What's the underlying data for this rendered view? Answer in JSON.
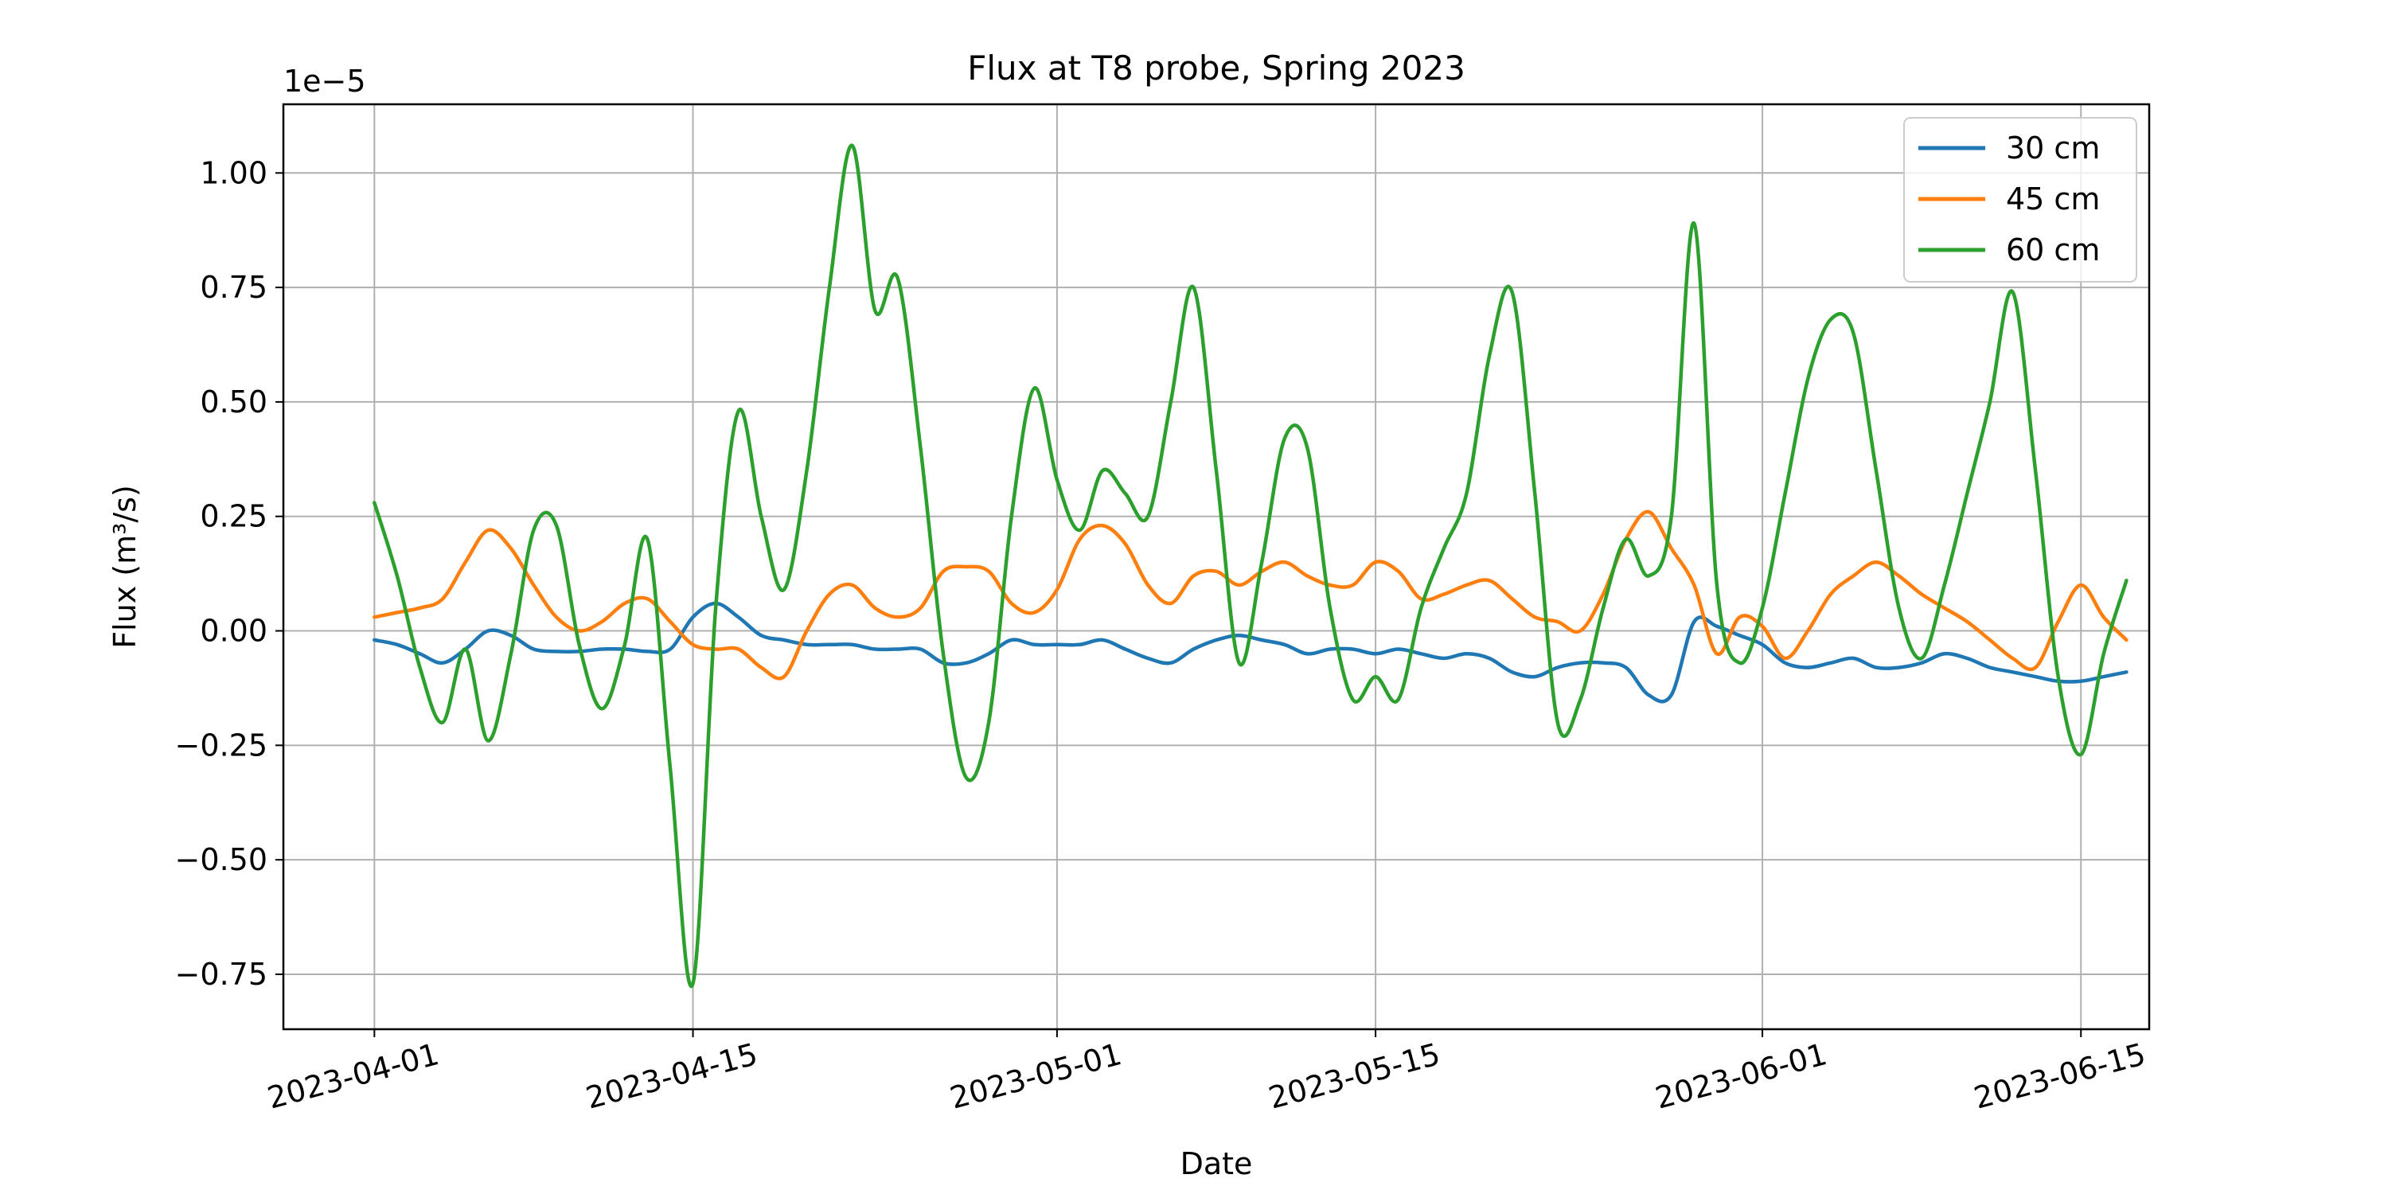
{
  "chart_data": {
    "type": "line",
    "title": "Flux at T8 probe, Spring 2023",
    "xlabel": "Date",
    "ylabel": "Flux (m³/s)",
    "y_scale_label": "1e−5",
    "y_multiplier": 1e-05,
    "grid": true,
    "legend_position": "top-right",
    "xlim": [
      "2023-03-28",
      "2023-06-18"
    ],
    "ylim": [
      -0.87,
      1.15
    ],
    "x_ticks": [
      {
        "date": "2023-04-01",
        "label": "2023-04-01"
      },
      {
        "date": "2023-04-15",
        "label": "2023-04-15"
      },
      {
        "date": "2023-05-01",
        "label": "2023-05-01"
      },
      {
        "date": "2023-05-15",
        "label": "2023-05-15"
      },
      {
        "date": "2023-06-01",
        "label": "2023-06-01"
      },
      {
        "date": "2023-06-15",
        "label": "2023-06-15"
      }
    ],
    "y_ticks": [
      {
        "value": 1.0,
        "label": "1.00"
      },
      {
        "value": 0.75,
        "label": "0.75"
      },
      {
        "value": 0.5,
        "label": "0.50"
      },
      {
        "value": 0.25,
        "label": "0.25"
      },
      {
        "value": 0.0,
        "label": "0.00"
      },
      {
        "value": -0.25,
        "label": "−0.25"
      },
      {
        "value": -0.5,
        "label": "−0.50"
      },
      {
        "value": -0.75,
        "label": "−0.75"
      }
    ],
    "series": [
      {
        "name": "30 cm",
        "color": "#1f77b4",
        "points": [
          [
            "2023-04-01",
            -0.02
          ],
          [
            "2023-04-02",
            -0.03
          ],
          [
            "2023-04-03",
            -0.05
          ],
          [
            "2023-04-04",
            -0.07
          ],
          [
            "2023-04-05",
            -0.04
          ],
          [
            "2023-04-06",
            0.0
          ],
          [
            "2023-04-07",
            -0.01
          ],
          [
            "2023-04-08",
            -0.04
          ],
          [
            "2023-04-09",
            -0.045
          ],
          [
            "2023-04-10",
            -0.045
          ],
          [
            "2023-04-11",
            -0.04
          ],
          [
            "2023-04-12",
            -0.04
          ],
          [
            "2023-04-13",
            -0.045
          ],
          [
            "2023-04-14",
            -0.04
          ],
          [
            "2023-04-15",
            0.03
          ],
          [
            "2023-04-16",
            0.06
          ],
          [
            "2023-04-17",
            0.03
          ],
          [
            "2023-04-18",
            -0.01
          ],
          [
            "2023-04-19",
            -0.02
          ],
          [
            "2023-04-20",
            -0.03
          ],
          [
            "2023-04-21",
            -0.03
          ],
          [
            "2023-04-22",
            -0.03
          ],
          [
            "2023-04-23",
            -0.04
          ],
          [
            "2023-04-24",
            -0.04
          ],
          [
            "2023-04-25",
            -0.04
          ],
          [
            "2023-04-26",
            -0.07
          ],
          [
            "2023-04-27",
            -0.07
          ],
          [
            "2023-04-28",
            -0.05
          ],
          [
            "2023-04-29",
            -0.02
          ],
          [
            "2023-04-30",
            -0.03
          ],
          [
            "2023-05-01",
            -0.03
          ],
          [
            "2023-05-02",
            -0.03
          ],
          [
            "2023-05-03",
            -0.02
          ],
          [
            "2023-05-04",
            -0.04
          ],
          [
            "2023-05-05",
            -0.06
          ],
          [
            "2023-05-06",
            -0.07
          ],
          [
            "2023-05-07",
            -0.04
          ],
          [
            "2023-05-08",
            -0.02
          ],
          [
            "2023-05-09",
            -0.01
          ],
          [
            "2023-05-10",
            -0.02
          ],
          [
            "2023-05-11",
            -0.03
          ],
          [
            "2023-05-12",
            -0.05
          ],
          [
            "2023-05-13",
            -0.04
          ],
          [
            "2023-05-14",
            -0.04
          ],
          [
            "2023-05-15",
            -0.05
          ],
          [
            "2023-05-16",
            -0.04
          ],
          [
            "2023-05-17",
            -0.05
          ],
          [
            "2023-05-18",
            -0.06
          ],
          [
            "2023-05-19",
            -0.05
          ],
          [
            "2023-05-20",
            -0.06
          ],
          [
            "2023-05-21",
            -0.09
          ],
          [
            "2023-05-22",
            -0.1
          ],
          [
            "2023-05-23",
            -0.08
          ],
          [
            "2023-05-24",
            -0.07
          ],
          [
            "2023-05-25",
            -0.07
          ],
          [
            "2023-05-26",
            -0.08
          ],
          [
            "2023-05-27",
            -0.14
          ],
          [
            "2023-05-28",
            -0.14
          ],
          [
            "2023-05-29",
            0.02
          ],
          [
            "2023-05-30",
            0.01
          ],
          [
            "2023-05-31",
            -0.01
          ],
          [
            "2023-06-01",
            -0.03
          ],
          [
            "2023-06-02",
            -0.07
          ],
          [
            "2023-06-03",
            -0.08
          ],
          [
            "2023-06-04",
            -0.07
          ],
          [
            "2023-06-05",
            -0.06
          ],
          [
            "2023-06-06",
            -0.08
          ],
          [
            "2023-06-07",
            -0.08
          ],
          [
            "2023-06-08",
            -0.07
          ],
          [
            "2023-06-09",
            -0.05
          ],
          [
            "2023-06-10",
            -0.06
          ],
          [
            "2023-06-11",
            -0.08
          ],
          [
            "2023-06-12",
            -0.09
          ],
          [
            "2023-06-13",
            -0.1
          ],
          [
            "2023-06-14",
            -0.11
          ],
          [
            "2023-06-15",
            -0.11
          ],
          [
            "2023-06-16",
            -0.1
          ],
          [
            "2023-06-17",
            -0.09
          ]
        ]
      },
      {
        "name": "45 cm",
        "color": "#ff7f0e",
        "points": [
          [
            "2023-04-01",
            0.03
          ],
          [
            "2023-04-02",
            0.04
          ],
          [
            "2023-04-03",
            0.05
          ],
          [
            "2023-04-04",
            0.07
          ],
          [
            "2023-04-05",
            0.15
          ],
          [
            "2023-04-06",
            0.22
          ],
          [
            "2023-04-07",
            0.18
          ],
          [
            "2023-04-08",
            0.1
          ],
          [
            "2023-04-09",
            0.03
          ],
          [
            "2023-04-10",
            0.0
          ],
          [
            "2023-04-11",
            0.02
          ],
          [
            "2023-04-12",
            0.06
          ],
          [
            "2023-04-13",
            0.07
          ],
          [
            "2023-04-14",
            0.02
          ],
          [
            "2023-04-15",
            -0.03
          ],
          [
            "2023-04-16",
            -0.04
          ],
          [
            "2023-04-17",
            -0.04
          ],
          [
            "2023-04-18",
            -0.08
          ],
          [
            "2023-04-19",
            -0.1
          ],
          [
            "2023-04-20",
            0.0
          ],
          [
            "2023-04-21",
            0.08
          ],
          [
            "2023-04-22",
            0.1
          ],
          [
            "2023-04-23",
            0.05
          ],
          [
            "2023-04-24",
            0.03
          ],
          [
            "2023-04-25",
            0.05
          ],
          [
            "2023-04-26",
            0.13
          ],
          [
            "2023-04-27",
            0.14
          ],
          [
            "2023-04-28",
            0.13
          ],
          [
            "2023-04-29",
            0.06
          ],
          [
            "2023-04-30",
            0.04
          ],
          [
            "2023-05-01",
            0.09
          ],
          [
            "2023-05-02",
            0.2
          ],
          [
            "2023-05-03",
            0.23
          ],
          [
            "2023-05-04",
            0.19
          ],
          [
            "2023-05-05",
            0.1
          ],
          [
            "2023-05-06",
            0.06
          ],
          [
            "2023-05-07",
            0.12
          ],
          [
            "2023-05-08",
            0.13
          ],
          [
            "2023-05-09",
            0.1
          ],
          [
            "2023-05-10",
            0.13
          ],
          [
            "2023-05-11",
            0.15
          ],
          [
            "2023-05-12",
            0.12
          ],
          [
            "2023-05-13",
            0.1
          ],
          [
            "2023-05-14",
            0.1
          ],
          [
            "2023-05-15",
            0.15
          ],
          [
            "2023-05-16",
            0.13
          ],
          [
            "2023-05-17",
            0.07
          ],
          [
            "2023-05-18",
            0.08
          ],
          [
            "2023-05-19",
            0.1
          ],
          [
            "2023-05-20",
            0.11
          ],
          [
            "2023-05-21",
            0.07
          ],
          [
            "2023-05-22",
            0.03
          ],
          [
            "2023-05-23",
            0.02
          ],
          [
            "2023-05-24",
            0.0
          ],
          [
            "2023-05-25",
            0.08
          ],
          [
            "2023-05-26",
            0.2
          ],
          [
            "2023-05-27",
            0.26
          ],
          [
            "2023-05-28",
            0.18
          ],
          [
            "2023-05-29",
            0.1
          ],
          [
            "2023-05-30",
            -0.05
          ],
          [
            "2023-05-31",
            0.03
          ],
          [
            "2023-06-01",
            0.01
          ],
          [
            "2023-06-02",
            -0.06
          ],
          [
            "2023-06-03",
            0.0
          ],
          [
            "2023-06-04",
            0.08
          ],
          [
            "2023-06-05",
            0.12
          ],
          [
            "2023-06-06",
            0.15
          ],
          [
            "2023-06-07",
            0.12
          ],
          [
            "2023-06-08",
            0.08
          ],
          [
            "2023-06-09",
            0.05
          ],
          [
            "2023-06-10",
            0.02
          ],
          [
            "2023-06-11",
            -0.02
          ],
          [
            "2023-06-12",
            -0.06
          ],
          [
            "2023-06-13",
            -0.08
          ],
          [
            "2023-06-14",
            0.02
          ],
          [
            "2023-06-15",
            0.1
          ],
          [
            "2023-06-16",
            0.03
          ],
          [
            "2023-06-17",
            -0.02
          ]
        ]
      },
      {
        "name": "60 cm",
        "color": "#2ca02c",
        "points": [
          [
            "2023-04-01",
            0.28
          ],
          [
            "2023-04-02",
            0.12
          ],
          [
            "2023-04-03",
            -0.08
          ],
          [
            "2023-04-04",
            -0.2
          ],
          [
            "2023-04-05",
            -0.04
          ],
          [
            "2023-04-06",
            -0.24
          ],
          [
            "2023-04-07",
            -0.05
          ],
          [
            "2023-04-08",
            0.22
          ],
          [
            "2023-04-09",
            0.23
          ],
          [
            "2023-04-10",
            -0.03
          ],
          [
            "2023-04-11",
            -0.17
          ],
          [
            "2023-04-12",
            -0.03
          ],
          [
            "2023-04-13",
            0.2
          ],
          [
            "2023-04-14",
            -0.3
          ],
          [
            "2023-04-15",
            -0.77
          ],
          [
            "2023-04-16",
            0.05
          ],
          [
            "2023-04-17",
            0.48
          ],
          [
            "2023-04-18",
            0.25
          ],
          [
            "2023-04-19",
            0.09
          ],
          [
            "2023-04-20",
            0.35
          ],
          [
            "2023-04-21",
            0.75
          ],
          [
            "2023-04-22",
            1.06
          ],
          [
            "2023-04-23",
            0.7
          ],
          [
            "2023-04-24",
            0.77
          ],
          [
            "2023-04-25",
            0.4
          ],
          [
            "2023-04-26",
            -0.05
          ],
          [
            "2023-04-27",
            -0.32
          ],
          [
            "2023-04-28",
            -0.2
          ],
          [
            "2023-04-29",
            0.25
          ],
          [
            "2023-04-30",
            0.53
          ],
          [
            "2023-05-01",
            0.33
          ],
          [
            "2023-05-02",
            0.22
          ],
          [
            "2023-05-03",
            0.35
          ],
          [
            "2023-05-04",
            0.3
          ],
          [
            "2023-05-05",
            0.25
          ],
          [
            "2023-05-06",
            0.5
          ],
          [
            "2023-05-07",
            0.75
          ],
          [
            "2023-05-08",
            0.35
          ],
          [
            "2023-05-09",
            -0.07
          ],
          [
            "2023-05-10",
            0.15
          ],
          [
            "2023-05-11",
            0.42
          ],
          [
            "2023-05-12",
            0.4
          ],
          [
            "2023-05-13",
            0.05
          ],
          [
            "2023-05-14",
            -0.15
          ],
          [
            "2023-05-15",
            -0.1
          ],
          [
            "2023-05-16",
            -0.15
          ],
          [
            "2023-05-17",
            0.05
          ],
          [
            "2023-05-18",
            0.18
          ],
          [
            "2023-05-19",
            0.3
          ],
          [
            "2023-05-20",
            0.6
          ],
          [
            "2023-05-21",
            0.74
          ],
          [
            "2023-05-22",
            0.3
          ],
          [
            "2023-05-23",
            -0.2
          ],
          [
            "2023-05-24",
            -0.15
          ],
          [
            "2023-05-25",
            0.05
          ],
          [
            "2023-05-26",
            0.2
          ],
          [
            "2023-05-27",
            0.12
          ],
          [
            "2023-05-28",
            0.25
          ],
          [
            "2023-05-29",
            0.89
          ],
          [
            "2023-05-30",
            0.1
          ],
          [
            "2023-05-31",
            -0.07
          ],
          [
            "2023-06-01",
            0.05
          ],
          [
            "2023-06-02",
            0.3
          ],
          [
            "2023-06-03",
            0.55
          ],
          [
            "2023-06-04",
            0.68
          ],
          [
            "2023-06-05",
            0.65
          ],
          [
            "2023-06-06",
            0.35
          ],
          [
            "2023-06-07",
            0.05
          ],
          [
            "2023-06-08",
            -0.06
          ],
          [
            "2023-06-09",
            0.1
          ],
          [
            "2023-06-10",
            0.3
          ],
          [
            "2023-06-11",
            0.5
          ],
          [
            "2023-06-12",
            0.74
          ],
          [
            "2023-06-13",
            0.35
          ],
          [
            "2023-06-14",
            -0.1
          ],
          [
            "2023-06-15",
            -0.27
          ],
          [
            "2023-06-16",
            -0.05
          ],
          [
            "2023-06-17",
            0.11
          ]
        ]
      }
    ]
  }
}
